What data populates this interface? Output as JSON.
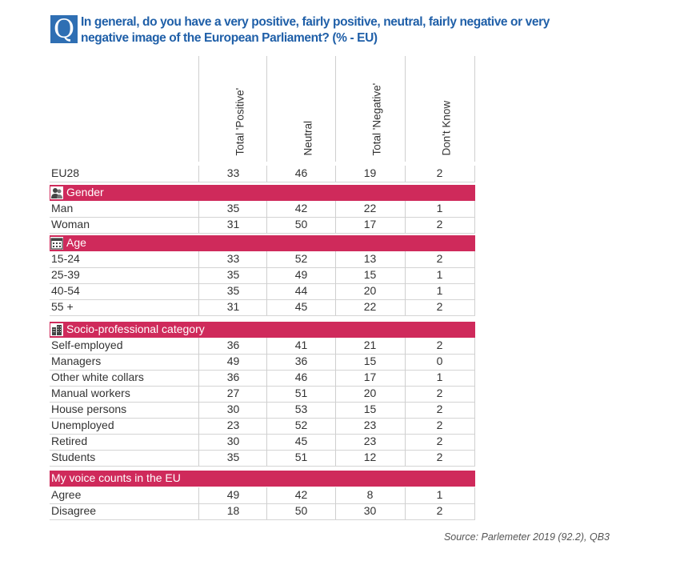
{
  "question": {
    "badge": "Q",
    "text": "In general, do you have a very positive, fairly positive, neutral, fairly negative or very negative image of the European Parliament? (% - EU)"
  },
  "source": "Source: Parlemeter 2019 (92.2), QB3",
  "colors": {
    "band": "#cf2a5b",
    "badge": "#2f6fb3",
    "title": "#1f5fa8"
  },
  "chart_data": {
    "type": "table",
    "columns": [
      "Total 'Positive'",
      "Neutral",
      "Total 'Negative'",
      "Don't Know"
    ],
    "rows": [
      {
        "kind": "data",
        "label": "EU28",
        "values": [
          33,
          46,
          19,
          2
        ]
      },
      {
        "kind": "section",
        "label": "Gender",
        "icon": "people-icon"
      },
      {
        "kind": "data",
        "label": "Man",
        "values": [
          35,
          42,
          22,
          1
        ]
      },
      {
        "kind": "data",
        "label": "Woman",
        "values": [
          31,
          50,
          17,
          2
        ]
      },
      {
        "kind": "section",
        "label": "Age",
        "icon": "calendar-icon"
      },
      {
        "kind": "data",
        "label": "15-24",
        "values": [
          33,
          52,
          13,
          2
        ]
      },
      {
        "kind": "data",
        "label": "25-39",
        "values": [
          35,
          49,
          15,
          1
        ]
      },
      {
        "kind": "data",
        "label": "40-54",
        "values": [
          35,
          44,
          20,
          1
        ]
      },
      {
        "kind": "data",
        "label": "55 +",
        "values": [
          31,
          45,
          22,
          2
        ]
      },
      {
        "kind": "section",
        "label": "Socio-professional category",
        "icon": "buildings-icon"
      },
      {
        "kind": "data",
        "label": "Self-employed",
        "values": [
          36,
          41,
          21,
          2
        ]
      },
      {
        "kind": "data",
        "label": "Managers",
        "values": [
          49,
          36,
          15,
          0
        ]
      },
      {
        "kind": "data",
        "label": "Other white collars",
        "values": [
          36,
          46,
          17,
          1
        ]
      },
      {
        "kind": "data",
        "label": "Manual workers",
        "values": [
          27,
          51,
          20,
          2
        ]
      },
      {
        "kind": "data",
        "label": "House persons",
        "values": [
          30,
          53,
          15,
          2
        ]
      },
      {
        "kind": "data",
        "label": "Unemployed",
        "values": [
          23,
          52,
          23,
          2
        ]
      },
      {
        "kind": "data",
        "label": "Retired",
        "values": [
          30,
          45,
          23,
          2
        ]
      },
      {
        "kind": "data",
        "label": "Students",
        "values": [
          35,
          51,
          12,
          2
        ]
      },
      {
        "kind": "section",
        "label": "My voice counts in the EU",
        "icon": ""
      },
      {
        "kind": "data",
        "label": "Agree",
        "values": [
          49,
          42,
          8,
          1
        ]
      },
      {
        "kind": "data",
        "label": "Disagree",
        "values": [
          18,
          50,
          30,
          2
        ]
      }
    ]
  }
}
